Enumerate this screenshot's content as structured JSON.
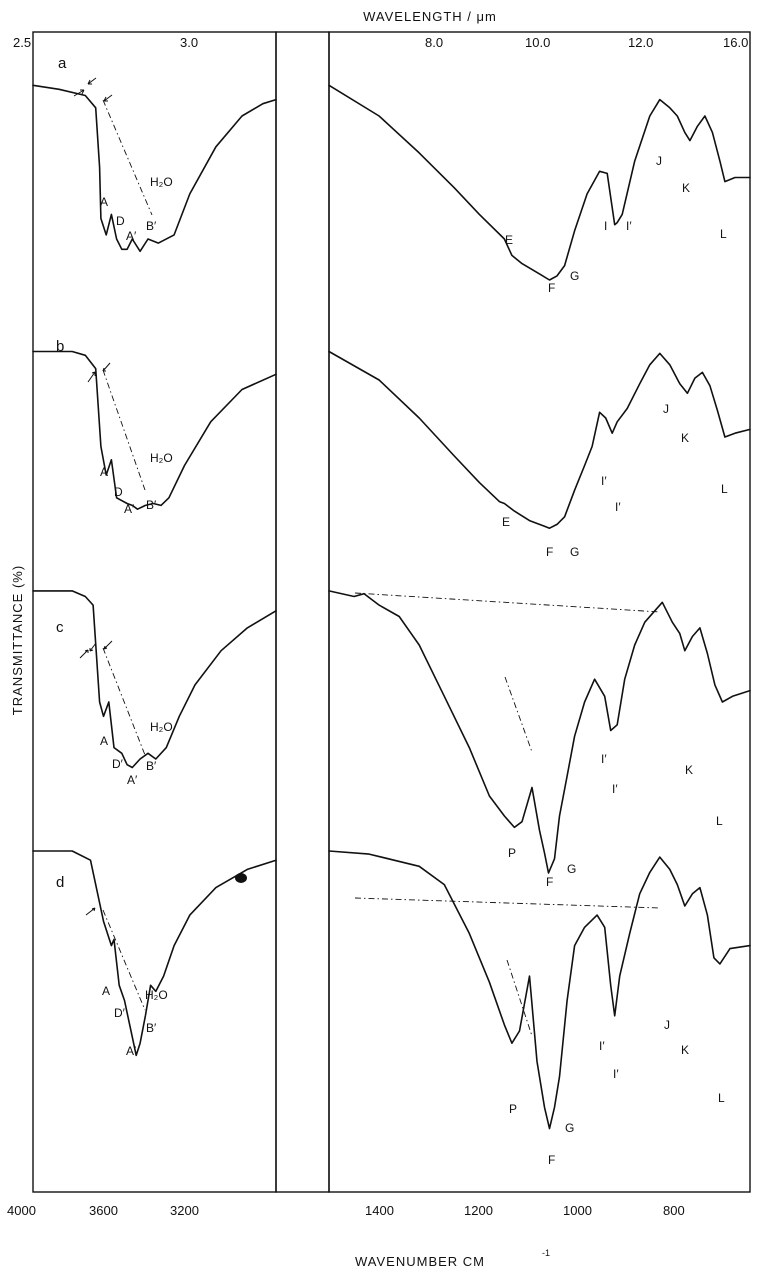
{
  "chart_data": {
    "type": "line",
    "top_axis": {
      "title": "WAVELENGTH / μm",
      "tick_labels": [
        "2.5",
        "3.0",
        "8.0",
        "10.0",
        "12.0",
        "16.0"
      ]
    },
    "bottom_axis": {
      "title": "WAVENUMBER  CM",
      "superscript": "-1",
      "tick_labels": [
        "4000",
        "3600",
        "3200",
        "1400",
        "1200",
        "1000",
        "800"
      ]
    },
    "ylabel": "TRANSMITTANCE (%)",
    "panels": [
      {
        "letter": "a",
        "oh_region": [
          [
            4000,
            0.05
          ],
          [
            3900,
            0.07
          ],
          [
            3800,
            0.1
          ],
          [
            3760,
            0.16
          ],
          [
            3745,
            0.45
          ],
          [
            3740,
            0.7
          ],
          [
            3720,
            0.78
          ],
          [
            3700,
            0.68
          ],
          [
            3680,
            0.8
          ],
          [
            3660,
            0.85
          ],
          [
            3640,
            0.85
          ],
          [
            3620,
            0.8
          ],
          [
            3590,
            0.86
          ],
          [
            3560,
            0.8
          ],
          [
            3520,
            0.82
          ],
          [
            3460,
            0.78
          ],
          [
            3400,
            0.58
          ],
          [
            3300,
            0.35
          ],
          [
            3200,
            0.2
          ],
          [
            3120,
            0.14
          ],
          [
            3070,
            0.12
          ]
        ],
        "oh_labels": [
          "A",
          "D",
          "A′",
          "B′",
          "H₂O"
        ],
        "fingerprint": [
          [
            1480,
            0.05
          ],
          [
            1380,
            0.2
          ],
          [
            1300,
            0.38
          ],
          [
            1230,
            0.55
          ],
          [
            1180,
            0.68
          ],
          [
            1130,
            0.8
          ],
          [
            1115,
            0.88
          ],
          [
            1095,
            0.92
          ],
          [
            1060,
            0.97
          ],
          [
            1040,
            1.0
          ],
          [
            1025,
            0.98
          ],
          [
            1010,
            0.93
          ],
          [
            990,
            0.76
          ],
          [
            965,
            0.58
          ],
          [
            940,
            0.47
          ],
          [
            925,
            0.48
          ],
          [
            910,
            0.73
          ],
          [
            905,
            0.72
          ],
          [
            895,
            0.68
          ],
          [
            870,
            0.42
          ],
          [
            840,
            0.2
          ],
          [
            820,
            0.12
          ],
          [
            800,
            0.16
          ],
          [
            785,
            0.2
          ],
          [
            770,
            0.28
          ],
          [
            760,
            0.32
          ],
          [
            745,
            0.25
          ],
          [
            730,
            0.2
          ],
          [
            715,
            0.28
          ],
          [
            700,
            0.42
          ],
          [
            690,
            0.52
          ],
          [
            670,
            0.5
          ],
          [
            640,
            0.5
          ]
        ],
        "fingerprint_labels": [
          "E",
          "F",
          "G",
          "I",
          "I′",
          "J",
          "K",
          "L"
        ]
      },
      {
        "letter": "b",
        "oh_region": [
          [
            4000,
            0.05
          ],
          [
            3850,
            0.05
          ],
          [
            3800,
            0.07
          ],
          [
            3760,
            0.14
          ],
          [
            3740,
            0.55
          ],
          [
            3720,
            0.7
          ],
          [
            3700,
            0.62
          ],
          [
            3680,
            0.82
          ],
          [
            3640,
            0.85
          ],
          [
            3620,
            0.86
          ],
          [
            3600,
            0.88
          ],
          [
            3570,
            0.86
          ],
          [
            3540,
            0.85
          ],
          [
            3510,
            0.86
          ],
          [
            3480,
            0.82
          ],
          [
            3420,
            0.65
          ],
          [
            3320,
            0.42
          ],
          [
            3200,
            0.25
          ],
          [
            3070,
            0.17
          ]
        ],
        "oh_labels": [
          "A",
          "D",
          "A′",
          "B′",
          "H₂O"
        ],
        "fingerprint": [
          [
            1480,
            0.05
          ],
          [
            1380,
            0.2
          ],
          [
            1300,
            0.4
          ],
          [
            1230,
            0.6
          ],
          [
            1180,
            0.74
          ],
          [
            1140,
            0.84
          ],
          [
            1130,
            0.85
          ],
          [
            1110,
            0.89
          ],
          [
            1080,
            0.94
          ],
          [
            1050,
            0.97
          ],
          [
            1040,
            0.98
          ],
          [
            1025,
            0.96
          ],
          [
            1010,
            0.92
          ],
          [
            990,
            0.78
          ],
          [
            970,
            0.65
          ],
          [
            955,
            0.55
          ],
          [
            940,
            0.37
          ],
          [
            928,
            0.4
          ],
          [
            915,
            0.48
          ],
          [
            905,
            0.42
          ],
          [
            885,
            0.35
          ],
          [
            860,
            0.22
          ],
          [
            840,
            0.12
          ],
          [
            820,
            0.06
          ],
          [
            800,
            0.12
          ],
          [
            780,
            0.22
          ],
          [
            765,
            0.27
          ],
          [
            750,
            0.19
          ],
          [
            735,
            0.16
          ],
          [
            720,
            0.23
          ],
          [
            705,
            0.36
          ],
          [
            690,
            0.5
          ],
          [
            670,
            0.48
          ],
          [
            640,
            0.46
          ]
        ],
        "fingerprint_labels": [
          "E",
          "F",
          "G",
          "I′",
          "I′",
          "J",
          "K",
          "L"
        ]
      },
      {
        "letter": "c",
        "oh_region": [
          [
            4000,
            0.01
          ],
          [
            3850,
            0.01
          ],
          [
            3800,
            0.03
          ],
          [
            3770,
            0.06
          ],
          [
            3745,
            0.4
          ],
          [
            3730,
            0.45
          ],
          [
            3710,
            0.4
          ],
          [
            3690,
            0.56
          ],
          [
            3660,
            0.58
          ],
          [
            3640,
            0.62
          ],
          [
            3620,
            0.63
          ],
          [
            3590,
            0.6
          ],
          [
            3560,
            0.58
          ],
          [
            3530,
            0.6
          ],
          [
            3490,
            0.56
          ],
          [
            3440,
            0.45
          ],
          [
            3380,
            0.34
          ],
          [
            3280,
            0.22
          ],
          [
            3180,
            0.14
          ],
          [
            3070,
            0.08
          ]
        ],
        "oh_labels": [
          "A",
          "D′",
          "A′",
          "B′",
          "H₂O"
        ],
        "fingerprint": [
          [
            1480,
            0.01
          ],
          [
            1430,
            0.03
          ],
          [
            1410,
            0.02
          ],
          [
            1380,
            0.06
          ],
          [
            1340,
            0.1
          ],
          [
            1300,
            0.2
          ],
          [
            1250,
            0.38
          ],
          [
            1200,
            0.56
          ],
          [
            1160,
            0.73
          ],
          [
            1130,
            0.8
          ],
          [
            1110,
            0.84
          ],
          [
            1095,
            0.82
          ],
          [
            1075,
            0.7
          ],
          [
            1060,
            0.85
          ],
          [
            1050,
            0.93
          ],
          [
            1042,
            1.0
          ],
          [
            1030,
            0.95
          ],
          [
            1020,
            0.8
          ],
          [
            1005,
            0.66
          ],
          [
            990,
            0.52
          ],
          [
            970,
            0.4
          ],
          [
            950,
            0.32
          ],
          [
            930,
            0.38
          ],
          [
            918,
            0.5
          ],
          [
            905,
            0.48
          ],
          [
            890,
            0.32
          ],
          [
            870,
            0.2
          ],
          [
            850,
            0.12
          ],
          [
            830,
            0.08
          ],
          [
            815,
            0.05
          ],
          [
            795,
            0.12
          ],
          [
            780,
            0.16
          ],
          [
            770,
            0.22
          ],
          [
            755,
            0.17
          ],
          [
            740,
            0.14
          ],
          [
            725,
            0.23
          ],
          [
            710,
            0.34
          ],
          [
            695,
            0.4
          ],
          [
            675,
            0.38
          ],
          [
            640,
            0.36
          ]
        ],
        "fingerprint_labels": [
          "P",
          "F",
          "G",
          "I′",
          "I′",
          "K",
          "L"
        ]
      },
      {
        "letter": "d",
        "oh_region": [
          [
            4000,
            0.01
          ],
          [
            3850,
            0.01
          ],
          [
            3780,
            0.04
          ],
          [
            3760,
            0.12
          ],
          [
            3730,
            0.24
          ],
          [
            3700,
            0.32
          ],
          [
            3690,
            0.3
          ],
          [
            3670,
            0.45
          ],
          [
            3650,
            0.5
          ],
          [
            3620,
            0.62
          ],
          [
            3605,
            0.68
          ],
          [
            3590,
            0.64
          ],
          [
            3570,
            0.55
          ],
          [
            3550,
            0.45
          ],
          [
            3530,
            0.47
          ],
          [
            3500,
            0.42
          ],
          [
            3460,
            0.32
          ],
          [
            3400,
            0.22
          ],
          [
            3300,
            0.13
          ],
          [
            3180,
            0.07
          ],
          [
            3070,
            0.04
          ]
        ],
        "oh_labels": [
          "A",
          "D′",
          "A′",
          "B′",
          "H₂O"
        ],
        "fingerprint": [
          [
            1480,
            0.01
          ],
          [
            1400,
            0.02
          ],
          [
            1300,
            0.06
          ],
          [
            1250,
            0.12
          ],
          [
            1200,
            0.28
          ],
          [
            1160,
            0.44
          ],
          [
            1130,
            0.58
          ],
          [
            1115,
            0.64
          ],
          [
            1100,
            0.6
          ],
          [
            1080,
            0.42
          ],
          [
            1065,
            0.7
          ],
          [
            1050,
            0.85
          ],
          [
            1040,
            0.92
          ],
          [
            1030,
            0.85
          ],
          [
            1020,
            0.75
          ],
          [
            1005,
            0.5
          ],
          [
            990,
            0.32
          ],
          [
            970,
            0.26
          ],
          [
            945,
            0.22
          ],
          [
            930,
            0.26
          ],
          [
            918,
            0.45
          ],
          [
            910,
            0.55
          ],
          [
            900,
            0.42
          ],
          [
            880,
            0.28
          ],
          [
            860,
            0.15
          ],
          [
            840,
            0.08
          ],
          [
            820,
            0.03
          ],
          [
            800,
            0.07
          ],
          [
            785,
            0.12
          ],
          [
            770,
            0.19
          ],
          [
            755,
            0.15
          ],
          [
            740,
            0.13
          ],
          [
            725,
            0.22
          ],
          [
            712,
            0.36
          ],
          [
            700,
            0.38
          ],
          [
            680,
            0.33
          ],
          [
            640,
            0.32
          ]
        ],
        "fingerprint_labels": [
          "P",
          "F",
          "G",
          "I′",
          "I′",
          "J",
          "K",
          "L"
        ]
      }
    ]
  }
}
